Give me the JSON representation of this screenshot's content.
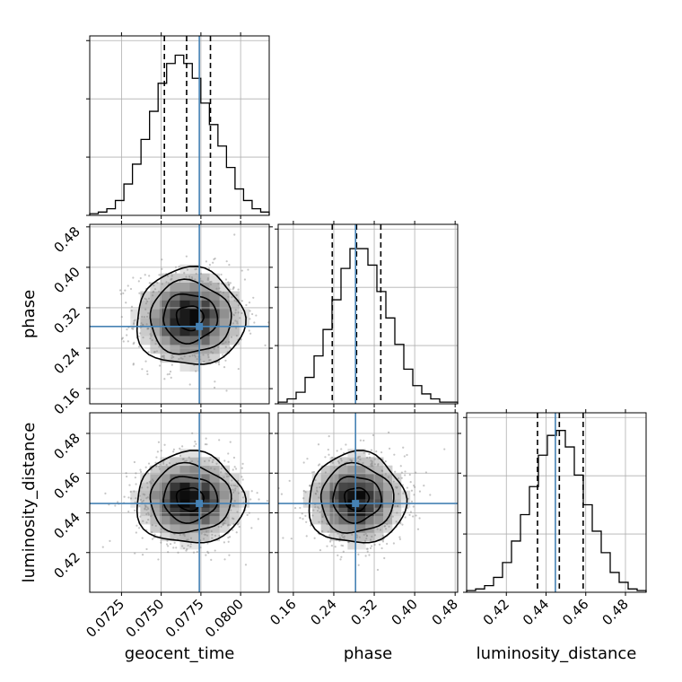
{
  "chart_data": {
    "type": "corner",
    "grid": true,
    "parameters": [
      "geocent_time",
      "phase",
      "luminosity_distance"
    ],
    "colors": {
      "truth": "#4682b4",
      "hist": "#000000",
      "quantile": "#000000",
      "points": "#808080"
    },
    "axes": {
      "geocent_time": {
        "label": "geocent_time",
        "range": [
          0.0705,
          0.0818
        ],
        "ticks": [
          0.0725,
          0.075,
          0.0775,
          0.08
        ],
        "tick_labels": [
          "0.0725",
          "0.0750",
          "0.0775",
          "0.0800"
        ],
        "truth": 0.0774,
        "quantiles": [
          0.0752,
          0.0766,
          0.0781
        ]
      },
      "phase": {
        "label": "phase",
        "range": [
          0.13,
          0.485
        ],
        "ticks": [
          0.16,
          0.24,
          0.32,
          0.4,
          0.48
        ],
        "tick_labels": [
          "0.16",
          "0.24",
          "0.32",
          "0.40",
          "0.48"
        ],
        "truth": 0.283,
        "quantiles": [
          0.237,
          0.285,
          0.333
        ]
      },
      "luminosity_distance": {
        "label": "luminosity_distance",
        "range": [
          0.4,
          0.4904
        ],
        "ticks": [
          0.42,
          0.44,
          0.46,
          0.48
        ],
        "tick_labels": [
          "0.42",
          "0.44",
          "0.46",
          "0.48"
        ],
        "truth": 0.4447,
        "quantiles": [
          0.4357,
          0.4467,
          0.4587
        ]
      }
    },
    "histograms": {
      "geocent_time": {
        "bin_range": [
          0.0705,
          0.0818
        ],
        "counts": [
          0.01,
          0.02,
          0.04,
          0.09,
          0.19,
          0.31,
          0.46,
          0.63,
          0.8,
          0.92,
          0.97,
          0.92,
          0.83,
          0.68,
          0.55,
          0.42,
          0.29,
          0.16,
          0.09,
          0.04,
          0.02
        ]
      },
      "phase": {
        "bin_range": [
          0.13,
          0.485
        ],
        "counts": [
          0.01,
          0.03,
          0.07,
          0.16,
          0.29,
          0.45,
          0.63,
          0.82,
          0.94,
          0.94,
          0.84,
          0.68,
          0.52,
          0.36,
          0.21,
          0.11,
          0.06,
          0.03,
          0.01,
          0.01
        ]
      },
      "luminosity_distance": {
        "bin_range": [
          0.4,
          0.4904
        ],
        "counts": [
          0.01,
          0.02,
          0.04,
          0.09,
          0.18,
          0.31,
          0.47,
          0.64,
          0.83,
          0.95,
          0.98,
          0.88,
          0.71,
          0.53,
          0.37,
          0.24,
          0.12,
          0.06,
          0.02,
          0.01
        ]
      }
    },
    "joint": [
      {
        "x": "geocent_time",
        "y": "phase",
        "center": [
          0.0768,
          0.3
        ],
        "sigma": [
          0.0017,
          0.048
        ],
        "contour_levels": [
          0.5,
          1.0,
          1.5,
          2.0
        ]
      },
      {
        "x": "geocent_time",
        "y": "luminosity_distance",
        "center": [
          0.0768,
          0.447
        ],
        "sigma": [
          0.0017,
          0.0115
        ],
        "contour_levels": [
          0.5,
          1.0,
          1.5,
          2.0
        ]
      },
      {
        "x": "phase",
        "y": "luminosity_distance",
        "center": [
          0.285,
          0.447
        ],
        "sigma": [
          0.048,
          0.0115
        ],
        "contour_levels": [
          0.5,
          1.0,
          1.5,
          2.0
        ]
      }
    ]
  }
}
